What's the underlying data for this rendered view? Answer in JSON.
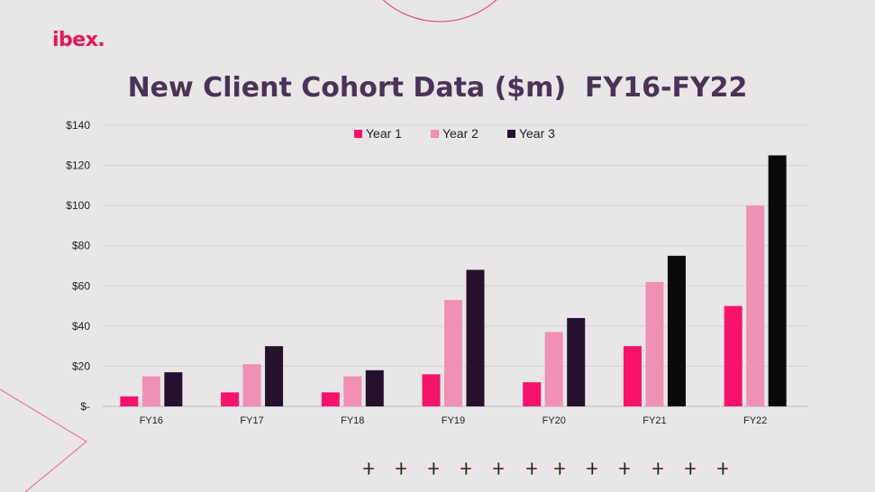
{
  "logo": "ibex.",
  "title": "New Client Cohort Data ($m)  FY16-FY22",
  "colors": {
    "background": "#e8e6e7",
    "title": "#4a3357",
    "brand": "#e6155f",
    "year1": "#f7136a",
    "year2": "#f090b4",
    "year3": "#26102e",
    "year3_recent": "#0a0a0a",
    "grid": "#d4d2d3"
  },
  "chart_data": {
    "type": "bar",
    "title": "New Client Cohort Data ($m)  FY16-FY22",
    "xlabel": "",
    "ylabel": "",
    "categories": [
      "FY16",
      "FY17",
      "FY18",
      "FY19",
      "FY20",
      "FY21",
      "FY22"
    ],
    "series": [
      {
        "name": "Year 1",
        "color": "#f7136a",
        "values": [
          5,
          7,
          7,
          16,
          12,
          30,
          50
        ]
      },
      {
        "name": "Year 2",
        "color": "#f090b4",
        "values": [
          15,
          21,
          15,
          53,
          37,
          62,
          100
        ]
      },
      {
        "name": "Year 3",
        "color": "#26102e",
        "values": [
          17,
          30,
          18,
          68,
          44,
          75,
          125
        ]
      }
    ],
    "ylim": [
      0,
      140
    ],
    "yticks": [
      0,
      20,
      40,
      60,
      80,
      100,
      120,
      140
    ],
    "ytick_labels": [
      "$-",
      "$20",
      "$40",
      "$60",
      "$80",
      "$100",
      "$120",
      "$140"
    ],
    "grid": true,
    "legend_position": "top"
  }
}
